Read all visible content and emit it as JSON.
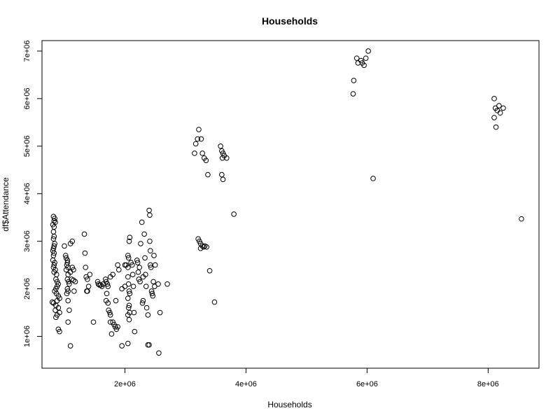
{
  "chart_data": {
    "type": "scatter",
    "title": "Households",
    "xlabel": "Households",
    "ylabel": "df$Attendance",
    "xlim": [
      630000,
      8840000
    ],
    "ylim": [
      330000,
      7220000
    ],
    "x_ticks": [
      2000000,
      4000000,
      6000000,
      8000000
    ],
    "x_tick_labels": [
      "2e+06",
      "4e+06",
      "6e+06",
      "8e+06"
    ],
    "y_ticks": [
      1000000,
      2000000,
      3000000,
      4000000,
      5000000,
      6000000,
      7000000
    ],
    "y_tick_labels": [
      "1e+06",
      "2e+06",
      "3e+06",
      "4e+06",
      "5e+06",
      "6e+06",
      "7e+06"
    ],
    "grid": false,
    "point_style": "open-circle",
    "point_color": "#000000",
    "points": [
      [
        820000,
        3520000
      ],
      [
        840000,
        3480000
      ],
      [
        830000,
        3430000
      ],
      [
        850000,
        3400000
      ],
      [
        810000,
        3350000
      ],
      [
        830000,
        3300000
      ],
      [
        820000,
        3200000
      ],
      [
        830000,
        3100000
      ],
      [
        820000,
        3050000
      ],
      [
        840000,
        2950000
      ],
      [
        830000,
        2900000
      ],
      [
        820000,
        2850000
      ],
      [
        810000,
        2800000
      ],
      [
        830000,
        2750000
      ],
      [
        820000,
        2700000
      ],
      [
        810000,
        2600000
      ],
      [
        840000,
        2550000
      ],
      [
        830000,
        2500000
      ],
      [
        820000,
        2450000
      ],
      [
        850000,
        2400000
      ],
      [
        830000,
        2350000
      ],
      [
        870000,
        2300000
      ],
      [
        860000,
        2200000
      ],
      [
        880000,
        2150000
      ],
      [
        900000,
        2100000
      ],
      [
        880000,
        2050000
      ],
      [
        860000,
        2000000
      ],
      [
        840000,
        1950000
      ],
      [
        870000,
        1900000
      ],
      [
        900000,
        1850000
      ],
      [
        920000,
        1800000
      ],
      [
        880000,
        1750000
      ],
      [
        800000,
        1720000
      ],
      [
        820000,
        1700000
      ],
      [
        860000,
        1650000
      ],
      [
        900000,
        1600000
      ],
      [
        850000,
        1550000
      ],
      [
        920000,
        1500000
      ],
      [
        880000,
        1450000
      ],
      [
        860000,
        1400000
      ],
      [
        900000,
        1150000
      ],
      [
        920000,
        1100000
      ],
      [
        1000000,
        2900000
      ],
      [
        1020000,
        2700000
      ],
      [
        1030000,
        2650000
      ],
      [
        1050000,
        2600000
      ],
      [
        1050000,
        2550000
      ],
      [
        1040000,
        2500000
      ],
      [
        1060000,
        2450000
      ],
      [
        1030000,
        2400000
      ],
      [
        1060000,
        2300000
      ],
      [
        1050000,
        2200000
      ],
      [
        1070000,
        2150000
      ],
      [
        1080000,
        2100000
      ],
      [
        1050000,
        2000000
      ],
      [
        1060000,
        1950000
      ],
      [
        1040000,
        1900000
      ],
      [
        1060000,
        1750000
      ],
      [
        1080000,
        1550000
      ],
      [
        1060000,
        1300000
      ],
      [
        1100000,
        800000
      ],
      [
        1100000,
        2950000
      ],
      [
        1130000,
        3000000
      ],
      [
        1130000,
        2450000
      ],
      [
        1150000,
        2400000
      ],
      [
        1100000,
        2350000
      ],
      [
        1120000,
        2200000
      ],
      [
        1150000,
        2180000
      ],
      [
        1180000,
        2150000
      ],
      [
        1160000,
        1950000
      ],
      [
        1330000,
        3150000
      ],
      [
        1340000,
        2750000
      ],
      [
        1350000,
        2450000
      ],
      [
        1360000,
        2250000
      ],
      [
        1380000,
        2200000
      ],
      [
        1400000,
        2050000
      ],
      [
        1370000,
        1950000
      ],
      [
        1420000,
        2300000
      ],
      [
        1380000,
        1950000
      ],
      [
        1480000,
        1300000
      ],
      [
        1550000,
        2150000
      ],
      [
        1560000,
        2100000
      ],
      [
        1580000,
        2080000
      ],
      [
        1600000,
        2080000
      ],
      [
        1620000,
        2050000
      ],
      [
        1640000,
        2100000
      ],
      [
        1680000,
        2200000
      ],
      [
        1690000,
        2150000
      ],
      [
        1710000,
        2100000
      ],
      [
        1720000,
        2050000
      ],
      [
        1700000,
        1900000
      ],
      [
        1690000,
        1750000
      ],
      [
        1720000,
        1700000
      ],
      [
        1730000,
        1550000
      ],
      [
        1750000,
        1500000
      ],
      [
        1760000,
        1450000
      ],
      [
        1760000,
        1300000
      ],
      [
        1780000,
        1050000
      ],
      [
        1800000,
        1300000
      ],
      [
        1820000,
        1250000
      ],
      [
        1840000,
        1200000
      ],
      [
        1860000,
        1150000
      ],
      [
        1880000,
        1200000
      ],
      [
        1760000,
        2250000
      ],
      [
        1800000,
        2300000
      ],
      [
        1850000,
        1750000
      ],
      [
        1880000,
        2500000
      ],
      [
        1900000,
        2400000
      ],
      [
        1950000,
        800000
      ],
      [
        1950000,
        2000000
      ],
      [
        2000000,
        2050000
      ],
      [
        2000000,
        2500000
      ],
      [
        2020000,
        2500000
      ],
      [
        2050000,
        2450000
      ],
      [
        2050000,
        2700000
      ],
      [
        2060000,
        2650000
      ],
      [
        2070000,
        3000000
      ],
      [
        2080000,
        3080000
      ],
      [
        2050000,
        2250000
      ],
      [
        2060000,
        2100000
      ],
      [
        2070000,
        1950000
      ],
      [
        2080000,
        1900000
      ],
      [
        2050000,
        1800000
      ],
      [
        2070000,
        1650000
      ],
      [
        2060000,
        1600000
      ],
      [
        2080000,
        1500000
      ],
      [
        2050000,
        1450000
      ],
      [
        2070000,
        1350000
      ],
      [
        2050000,
        850000
      ],
      [
        2100000,
        2550000
      ],
      [
        2120000,
        2500000
      ],
      [
        2130000,
        2300000
      ],
      [
        2140000,
        2050000
      ],
      [
        2150000,
        1500000
      ],
      [
        2160000,
        1100000
      ],
      [
        2200000,
        2600000
      ],
      [
        2210000,
        2550000
      ],
      [
        2220000,
        2350000
      ],
      [
        2230000,
        2200000
      ],
      [
        2240000,
        2450000
      ],
      [
        2250000,
        2150000
      ],
      [
        2260000,
        2950000
      ],
      [
        2280000,
        3400000
      ],
      [
        2290000,
        1700000
      ],
      [
        2300000,
        1750000
      ],
      [
        2300000,
        2250000
      ],
      [
        2320000,
        3150000
      ],
      [
        2330000,
        2650000
      ],
      [
        2340000,
        2300000
      ],
      [
        2350000,
        2050000
      ],
      [
        2360000,
        1600000
      ],
      [
        2380000,
        1450000
      ],
      [
        2380000,
        820000
      ],
      [
        2400000,
        820000
      ],
      [
        2400000,
        3650000
      ],
      [
        2410000,
        3550000
      ],
      [
        2410000,
        3000000
      ],
      [
        2420000,
        2800000
      ],
      [
        2420000,
        2500000
      ],
      [
        2430000,
        2450000
      ],
      [
        2440000,
        1950000
      ],
      [
        2450000,
        1900000
      ],
      [
        2460000,
        1850000
      ],
      [
        2470000,
        2150000
      ],
      [
        2480000,
        2700000
      ],
      [
        2490000,
        2050000
      ],
      [
        2500000,
        2500000
      ],
      [
        2550000,
        2100000
      ],
      [
        2560000,
        650000
      ],
      [
        2580000,
        1500000
      ],
      [
        2700000,
        2100000
      ],
      [
        3150000,
        4850000
      ],
      [
        3170000,
        5050000
      ],
      [
        3200000,
        5150000
      ],
      [
        3220000,
        5350000
      ],
      [
        3260000,
        5150000
      ],
      [
        3280000,
        4850000
      ],
      [
        3310000,
        4750000
      ],
      [
        3340000,
        4700000
      ],
      [
        3370000,
        4400000
      ],
      [
        3210000,
        3050000
      ],
      [
        3230000,
        3000000
      ],
      [
        3250000,
        2950000
      ],
      [
        3280000,
        2900000
      ],
      [
        3300000,
        2880000
      ],
      [
        3320000,
        2900000
      ],
      [
        3350000,
        2880000
      ],
      [
        3250000,
        2850000
      ],
      [
        3400000,
        2380000
      ],
      [
        3480000,
        1720000
      ],
      [
        3580000,
        5000000
      ],
      [
        3600000,
        4900000
      ],
      [
        3610000,
        4750000
      ],
      [
        3620000,
        4850000
      ],
      [
        3640000,
        4800000
      ],
      [
        3680000,
        4750000
      ],
      [
        3600000,
        4400000
      ],
      [
        3620000,
        4300000
      ],
      [
        3800000,
        3570000
      ],
      [
        5780000,
        6380000
      ],
      [
        5770000,
        6100000
      ],
      [
        5830000,
        6850000
      ],
      [
        5850000,
        6750000
      ],
      [
        5900000,
        6800000
      ],
      [
        5920000,
        6750000
      ],
      [
        5950000,
        6700000
      ],
      [
        5980000,
        6850000
      ],
      [
        6020000,
        7000000
      ],
      [
        6100000,
        4320000
      ],
      [
        8100000,
        6000000
      ],
      [
        8120000,
        5800000
      ],
      [
        8150000,
        5750000
      ],
      [
        8180000,
        5850000
      ],
      [
        8200000,
        5700000
      ],
      [
        8250000,
        5800000
      ],
      [
        8100000,
        5600000
      ],
      [
        8130000,
        5400000
      ],
      [
        8550000,
        3470000
      ]
    ]
  }
}
